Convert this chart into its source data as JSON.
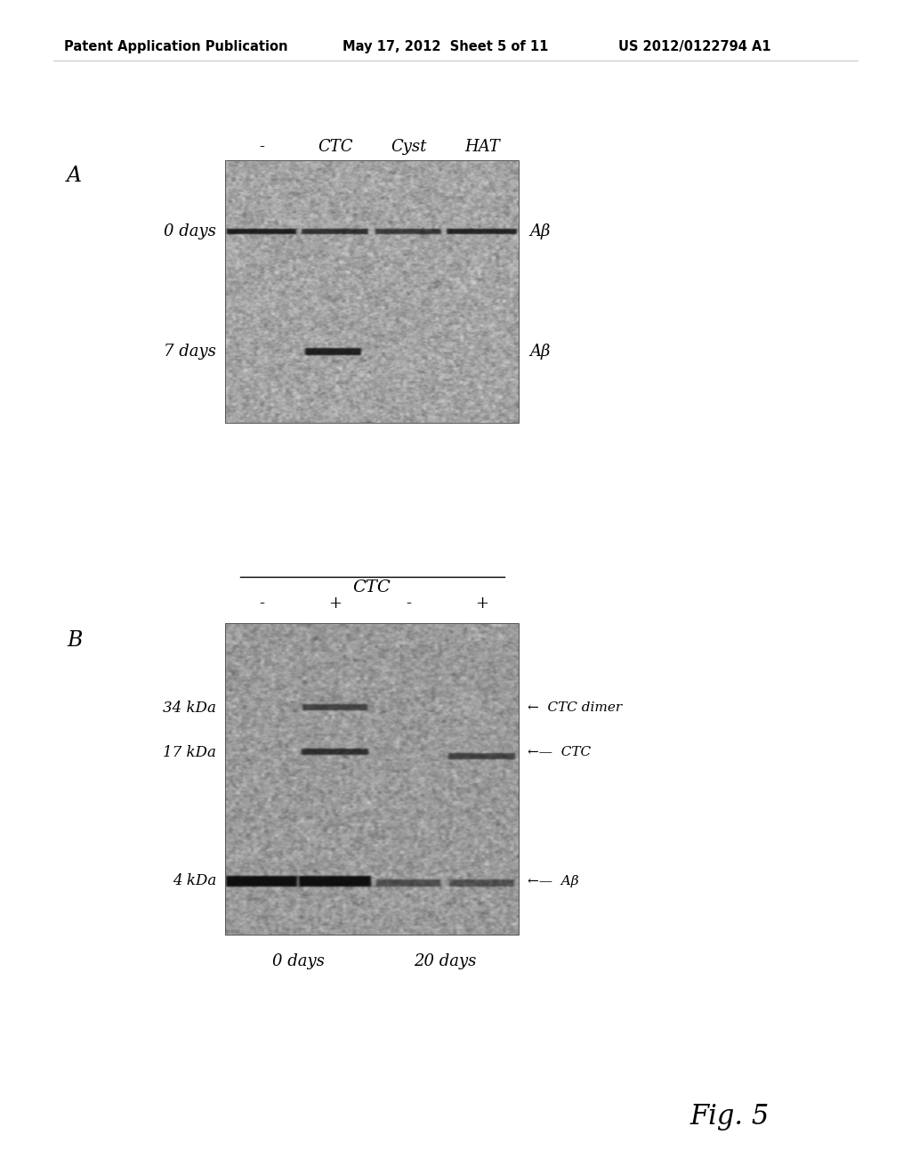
{
  "header_left": "Patent Application Publication",
  "header_mid": "May 17, 2012  Sheet 5 of 11",
  "header_right": "US 2012/0122794 A1",
  "fig_label": "Fig. 5",
  "panel_A_label": "A",
  "panel_A_col_labels": [
    "-",
    "CTC",
    "Cyst",
    "HAT"
  ],
  "panel_A_row_labels": [
    "0 days",
    "7 days"
  ],
  "panel_A_right_labels": [
    "Aβ",
    "Aβ"
  ],
  "panel_B_label": "B",
  "panel_B_top_label": "CTC",
  "panel_B_col_labels": [
    "-",
    "+",
    "-",
    "+"
  ],
  "panel_B_left_labels": [
    "34 kDa",
    "17 kDa",
    "4 kDa"
  ],
  "panel_B_right_label_ctcdimer": "←  CTC dimer",
  "panel_B_right_label_ctc": "←—  CTC",
  "panel_B_right_label_abeta": "←—  Aβ",
  "panel_B_bottom_labels": [
    "0 days",
    "20 days"
  ],
  "bg_color": "#ffffff",
  "text_color": "#000000",
  "gel_mean": 0.62,
  "gel_std": 0.09
}
